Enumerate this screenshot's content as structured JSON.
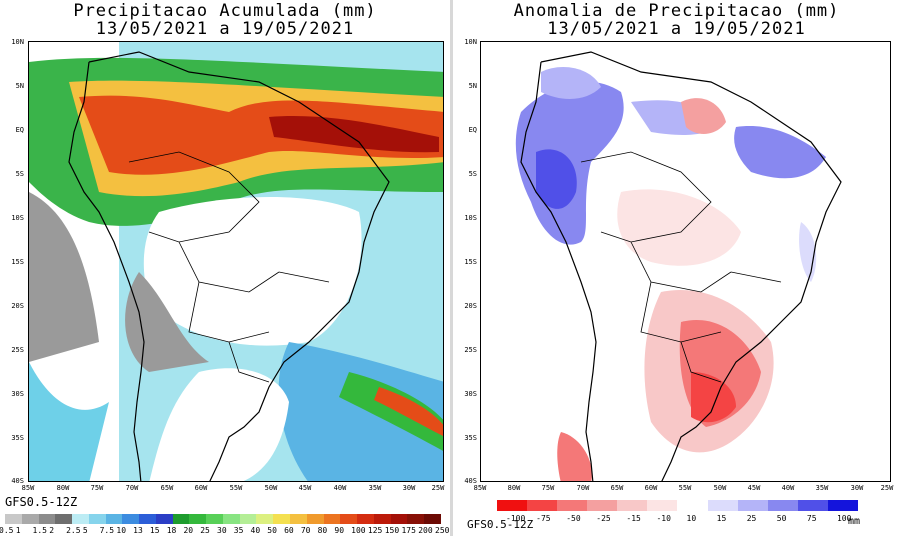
{
  "left_panel": {
    "title_line1": "Precipitacao Acumulada (mm)",
    "title_line2": "13/05/2021 a 19/05/2021",
    "model_label": "GFS0.5-12Z",
    "lat_ticks": [
      "10N",
      "5N",
      "EQ",
      "5S",
      "10S",
      "15S",
      "20S",
      "25S",
      "30S",
      "35S",
      "40S"
    ],
    "lon_ticks": [
      "85W",
      "80W",
      "75W",
      "70W",
      "65W",
      "60W",
      "55W",
      "50W",
      "45W",
      "40W",
      "35W",
      "30W",
      "25W"
    ],
    "colorbar": {
      "labels": [
        "0.5",
        "1",
        "1.5",
        "2",
        "2.5",
        "5",
        "7.5",
        "10",
        "13",
        "15",
        "18",
        "20",
        "25",
        "30",
        "35",
        "40",
        "50",
        "60",
        "70",
        "80",
        "90",
        "100",
        "125",
        "150",
        "175",
        "200",
        "250"
      ],
      "colors": [
        "#c8c8c8",
        "#a9a9a9",
        "#8c8c8c",
        "#6e6e6e",
        "#bcecf4",
        "#86d4ec",
        "#5ab4e4",
        "#3c8ce0",
        "#2c5ed8",
        "#2b3ec6",
        "#1e9c2e",
        "#34b83c",
        "#58d058",
        "#88e482",
        "#b4ee96",
        "#dcf080",
        "#f4e050",
        "#f4c040",
        "#f09a2c",
        "#ec7420",
        "#e44c18",
        "#d42c10",
        "#bc1a0a",
        "#a41008",
        "#881006",
        "#6c0a04"
      ]
    }
  },
  "right_panel": {
    "title_line1": "Anomalia de Precipitacao (mm)",
    "title_line2": "13/05/2021 a 19/05/2021",
    "model_label": "GFS0.5-12Z",
    "units": "mm",
    "lat_ticks": [
      "10N",
      "5N",
      "EQ",
      "5S",
      "10S",
      "15S",
      "20S",
      "25S",
      "30S",
      "35S",
      "40S"
    ],
    "lon_ticks": [
      "85W",
      "80W",
      "75W",
      "70W",
      "65W",
      "60W",
      "55W",
      "50W",
      "45W",
      "40W",
      "35W",
      "30W",
      "25W"
    ],
    "colorbar": {
      "labels": [
        "-100",
        "-75",
        "-50",
        "-25",
        "-15",
        "-10",
        "10",
        "15",
        "25",
        "50",
        "75",
        "100"
      ],
      "colors": [
        "#f01010",
        "#f44444",
        "#f47878",
        "#f4a0a0",
        "#f8c8c8",
        "#fce4e4",
        "#ffffff",
        "#dcdcfc",
        "#b4b4f8",
        "#8888f0",
        "#5050e8",
        "#1414dc"
      ]
    }
  }
}
